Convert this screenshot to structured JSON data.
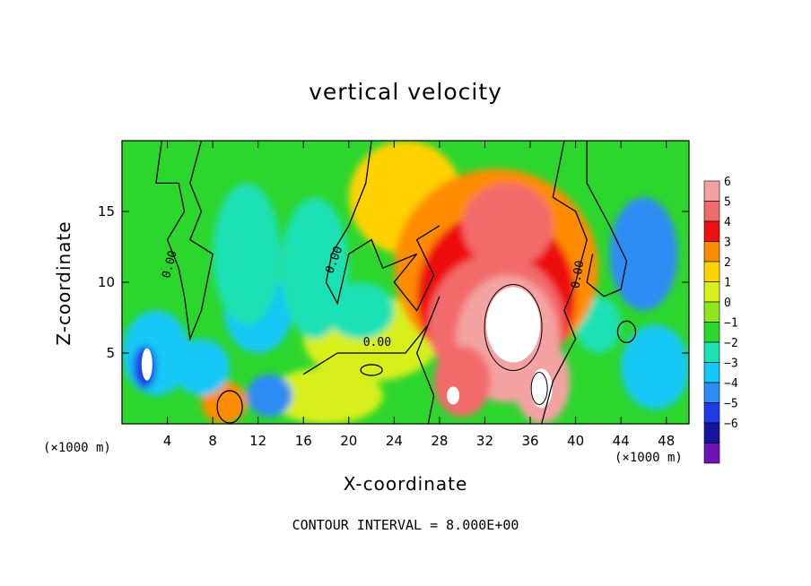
{
  "chart_data": {
    "type": "heatmap",
    "title": "vertical velocity",
    "xlabel": "X-coordinate",
    "ylabel": "Z-coordinate",
    "x_unit_note": "(×1000 m)",
    "footnote": "CONTOUR INTERVAL = 8.000E+00",
    "xlim": [
      0,
      50
    ],
    "ylim": [
      0,
      20
    ],
    "x_ticks": [
      4,
      8,
      12,
      16,
      20,
      24,
      28,
      32,
      36,
      40,
      44,
      48
    ],
    "y_ticks": [
      5,
      10,
      15
    ],
    "colorbar": {
      "levels": [
        6,
        5,
        4,
        3,
        2,
        1,
        0,
        -1,
        -2,
        -3,
        -4,
        -5,
        -6
      ],
      "colors": [
        "#f4a3a3",
        "#f26a6a",
        "#ee1111",
        "#ff8c00",
        "#ffd200",
        "#d7f01e",
        "#8fe61e",
        "#2dd62d",
        "#1ee1b4",
        "#14c8f5",
        "#2d8cf5",
        "#1e3ce6",
        "#1414a0",
        "#6e14b4"
      ]
    },
    "contour_labels": [
      "0.00",
      "0.00",
      "0.00",
      "0.00"
    ],
    "field_features": [
      {
        "x": 34,
        "z": 6.5,
        "w": 7,
        "note": "strong updraft core exceeding +6"
      },
      {
        "x": 37,
        "z": 2.5,
        "w": 7,
        "note": "updraft core exceeding +6"
      },
      {
        "x": 2,
        "z": 4,
        "w": -7,
        "note": "downdraft core below -6"
      },
      {
        "x": 46,
        "z": 12,
        "w": -4.5,
        "note": "downdraft"
      },
      {
        "x": 12,
        "z": 8,
        "w": -4,
        "note": "downdraft"
      }
    ]
  }
}
